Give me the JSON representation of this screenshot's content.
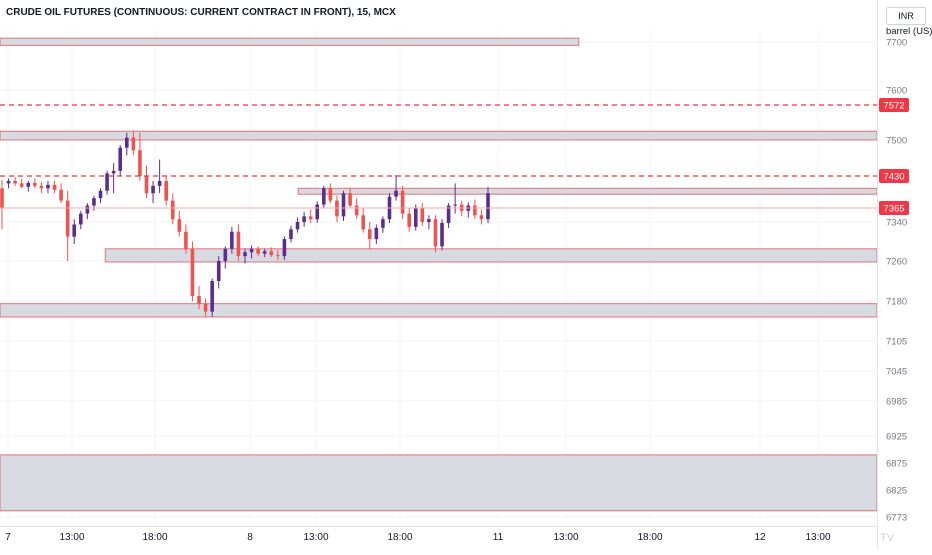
{
  "header": {
    "title": "CRUDE OIL FUTURES (CONTINUOUS: CURRENT CONTRACT IN FRONT), 15, MCX",
    "currency": "INR",
    "unit": "barrel (US)"
  },
  "colors": {
    "up": "#5b2d8e",
    "down": "#ef5350",
    "zone_fill": "#d1d4dc",
    "zone_border": "#e57373",
    "grid": "#f0f3fa",
    "dashed_line": "#e53935",
    "axis_text": "#787b86",
    "badge_bg": "#f23645"
  },
  "chart_data": {
    "type": "candlestick",
    "title": "CRUDE OIL FUTURES (CONTINUOUS: CURRENT CONTRACT IN FRONT), 15, MCX",
    "y_ticks": [
      7700,
      7600,
      7500,
      7430,
      7340,
      7260,
      7180,
      7105,
      7045,
      6985,
      6925,
      6875,
      6825,
      6773
    ],
    "x_ticks": [
      "7",
      "13:00",
      "18:00",
      "8",
      "13:00",
      "18:00",
      "11",
      "13:00",
      "18:00",
      "12",
      "13:00"
    ],
    "ylim": [
      6773,
      7700
    ],
    "price_badges": [
      {
        "value": 7572,
        "label": "7572",
        "dashed_line": true
      },
      {
        "value": 7430,
        "label": "7430",
        "dashed_line": true
      },
      {
        "value": 7365,
        "label": "7365",
        "dashed_line": false
      }
    ],
    "zones": [
      {
        "x_start": 0,
        "x_end": 66,
        "top": 7708,
        "bottom": 7693
      },
      {
        "x_start": 0,
        "x_end": 104,
        "top": 7518,
        "bottom": 7500
      },
      {
        "x_start": 34,
        "x_end": 104,
        "top": 7405,
        "bottom": 7393
      },
      {
        "x_start": 12,
        "x_end": 104,
        "top": 7285,
        "bottom": 7258
      },
      {
        "x_start": 0,
        "x_end": 104,
        "top": 7175,
        "bottom": 7150
      },
      {
        "x_start": 0,
        "x_end": 104,
        "top": 6890,
        "bottom": 6785
      }
    ],
    "candles": [
      {
        "o": 7405,
        "h": 7422,
        "l": 7325,
        "c": 7365
      },
      {
        "o": 7415,
        "h": 7425,
        "l": 7405,
        "c": 7420
      },
      {
        "o": 7420,
        "h": 7428,
        "l": 7410,
        "c": 7415
      },
      {
        "o": 7415,
        "h": 7425,
        "l": 7405,
        "c": 7408
      },
      {
        "o": 7408,
        "h": 7420,
        "l": 7398,
        "c": 7416
      },
      {
        "o": 7416,
        "h": 7425,
        "l": 7405,
        "c": 7410
      },
      {
        "o": 7410,
        "h": 7418,
        "l": 7395,
        "c": 7405
      },
      {
        "o": 7405,
        "h": 7420,
        "l": 7395,
        "c": 7412
      },
      {
        "o": 7412,
        "h": 7420,
        "l": 7395,
        "c": 7402
      },
      {
        "o": 7402,
        "h": 7415,
        "l": 7375,
        "c": 7380
      },
      {
        "o": 7380,
        "h": 7400,
        "l": 7260,
        "c": 7310
      },
      {
        "o": 7310,
        "h": 7345,
        "l": 7295,
        "c": 7335
      },
      {
        "o": 7335,
        "h": 7360,
        "l": 7325,
        "c": 7355
      },
      {
        "o": 7355,
        "h": 7375,
        "l": 7345,
        "c": 7370
      },
      {
        "o": 7370,
        "h": 7390,
        "l": 7360,
        "c": 7385
      },
      {
        "o": 7385,
        "h": 7405,
        "l": 7375,
        "c": 7400
      },
      {
        "o": 7400,
        "h": 7440,
        "l": 7392,
        "c": 7435
      },
      {
        "o": 7435,
        "h": 7455,
        "l": 7395,
        "c": 7440
      },
      {
        "o": 7440,
        "h": 7490,
        "l": 7430,
        "c": 7485
      },
      {
        "o": 7485,
        "h": 7515,
        "l": 7470,
        "c": 7505
      },
      {
        "o": 7505,
        "h": 7520,
        "l": 7470,
        "c": 7480
      },
      {
        "o": 7480,
        "h": 7515,
        "l": 7420,
        "c": 7430
      },
      {
        "o": 7430,
        "h": 7450,
        "l": 7385,
        "c": 7395
      },
      {
        "o": 7395,
        "h": 7420,
        "l": 7375,
        "c": 7410
      },
      {
        "o": 7410,
        "h": 7462,
        "l": 7395,
        "c": 7420
      },
      {
        "o": 7420,
        "h": 7430,
        "l": 7370,
        "c": 7380
      },
      {
        "o": 7380,
        "h": 7395,
        "l": 7335,
        "c": 7345
      },
      {
        "o": 7345,
        "h": 7360,
        "l": 7310,
        "c": 7320
      },
      {
        "o": 7320,
        "h": 7335,
        "l": 7275,
        "c": 7285
      },
      {
        "o": 7285,
        "h": 7300,
        "l": 7180,
        "c": 7190
      },
      {
        "o": 7190,
        "h": 7210,
        "l": 7165,
        "c": 7175
      },
      {
        "o": 7175,
        "h": 7185,
        "l": 7150,
        "c": 7160
      },
      {
        "o": 7160,
        "h": 7225,
        "l": 7150,
        "c": 7220
      },
      {
        "o": 7220,
        "h": 7270,
        "l": 7205,
        "c": 7260
      },
      {
        "o": 7260,
        "h": 7290,
        "l": 7245,
        "c": 7285
      },
      {
        "o": 7285,
        "h": 7330,
        "l": 7275,
        "c": 7320
      },
      {
        "o": 7320,
        "h": 7335,
        "l": 7260,
        "c": 7270
      },
      {
        "o": 7270,
        "h": 7285,
        "l": 7255,
        "c": 7278
      },
      {
        "o": 7278,
        "h": 7292,
        "l": 7265,
        "c": 7285
      },
      {
        "o": 7285,
        "h": 7290,
        "l": 7270,
        "c": 7275
      },
      {
        "o": 7275,
        "h": 7285,
        "l": 7268,
        "c": 7280
      },
      {
        "o": 7280,
        "h": 7288,
        "l": 7268,
        "c": 7272
      },
      {
        "o": 7272,
        "h": 7282,
        "l": 7262,
        "c": 7270
      },
      {
        "o": 7270,
        "h": 7310,
        "l": 7262,
        "c": 7305
      },
      {
        "o": 7305,
        "h": 7332,
        "l": 7298,
        "c": 7325
      },
      {
        "o": 7325,
        "h": 7348,
        "l": 7318,
        "c": 7340
      },
      {
        "o": 7340,
        "h": 7358,
        "l": 7330,
        "c": 7350
      },
      {
        "o": 7350,
        "h": 7362,
        "l": 7338,
        "c": 7345
      },
      {
        "o": 7345,
        "h": 7378,
        "l": 7338,
        "c": 7372
      },
      {
        "o": 7372,
        "h": 7410,
        "l": 7365,
        "c": 7405
      },
      {
        "o": 7405,
        "h": 7415,
        "l": 7375,
        "c": 7380
      },
      {
        "o": 7380,
        "h": 7390,
        "l": 7340,
        "c": 7350
      },
      {
        "o": 7350,
        "h": 7400,
        "l": 7342,
        "c": 7395
      },
      {
        "o": 7395,
        "h": 7405,
        "l": 7365,
        "c": 7370
      },
      {
        "o": 7370,
        "h": 7385,
        "l": 7345,
        "c": 7352
      },
      {
        "o": 7352,
        "h": 7365,
        "l": 7318,
        "c": 7325
      },
      {
        "o": 7325,
        "h": 7340,
        "l": 7285,
        "c": 7305
      },
      {
        "o": 7305,
        "h": 7335,
        "l": 7295,
        "c": 7328
      },
      {
        "o": 7328,
        "h": 7350,
        "l": 7318,
        "c": 7345
      },
      {
        "o": 7345,
        "h": 7395,
        "l": 7338,
        "c": 7388
      },
      {
        "o": 7388,
        "h": 7432,
        "l": 7380,
        "c": 7400
      },
      {
        "o": 7400,
        "h": 7410,
        "l": 7345,
        "c": 7355
      },
      {
        "o": 7355,
        "h": 7365,
        "l": 7320,
        "c": 7330
      },
      {
        "o": 7330,
        "h": 7372,
        "l": 7322,
        "c": 7365
      },
      {
        "o": 7365,
        "h": 7375,
        "l": 7332,
        "c": 7340
      },
      {
        "o": 7340,
        "h": 7352,
        "l": 7325,
        "c": 7345
      },
      {
        "o": 7345,
        "h": 7352,
        "l": 7278,
        "c": 7290
      },
      {
        "o": 7290,
        "h": 7345,
        "l": 7282,
        "c": 7338
      },
      {
        "o": 7338,
        "h": 7375,
        "l": 7328,
        "c": 7370
      },
      {
        "o": 7370,
        "h": 7415,
        "l": 7355,
        "c": 7372
      },
      {
        "o": 7372,
        "h": 7380,
        "l": 7350,
        "c": 7360
      },
      {
        "o": 7360,
        "h": 7376,
        "l": 7348,
        "c": 7370
      },
      {
        "o": 7370,
        "h": 7382,
        "l": 7345,
        "c": 7352
      },
      {
        "o": 7352,
        "h": 7362,
        "l": 7335,
        "c": 7345
      },
      {
        "o": 7345,
        "h": 7408,
        "l": 7338,
        "c": 7395
      }
    ]
  },
  "watermark": "TV"
}
